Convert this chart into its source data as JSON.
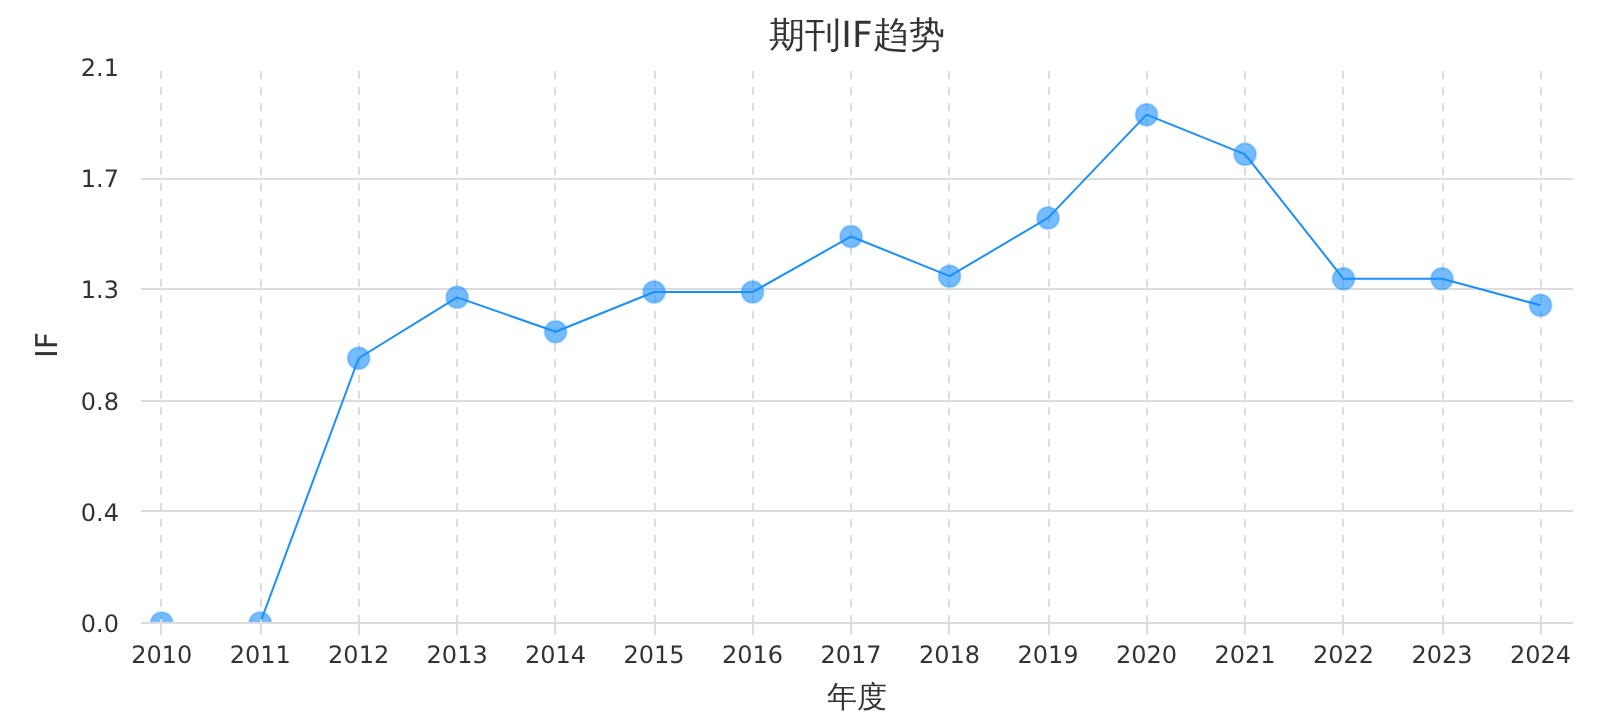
{
  "chart_data": {
    "type": "line",
    "title": "期刊IF趋势",
    "xlabel": "年度",
    "ylabel": "IF",
    "categories": [
      "2010",
      "2011",
      "2012",
      "2013",
      "2014",
      "2015",
      "2016",
      "2017",
      "2018",
      "2019",
      "2020",
      "2021",
      "2022",
      "2023",
      "2024"
    ],
    "series": [
      {
        "color": "#1890ff",
        "values": [
          0,
          0,
          1.0,
          1.23,
          1.1,
          1.25,
          1.25,
          1.46,
          1.31,
          1.53,
          1.92,
          1.77,
          1.3,
          1.3,
          1.2
        ]
      }
    ],
    "ylim": [
      0,
      2.1
    ],
    "yticks": [
      {
        "value": 0,
        "label": "0.0"
      },
      {
        "value": 0.42,
        "label": "0.4"
      },
      {
        "value": 0.84,
        "label": "0.8"
      },
      {
        "value": 1.26,
        "label": "1.3"
      },
      {
        "value": 1.68,
        "label": "1.7"
      },
      {
        "value": 2.1,
        "label": "2.1"
      }
    ],
    "grid": true,
    "marker": "circle",
    "line_style": "solid"
  }
}
